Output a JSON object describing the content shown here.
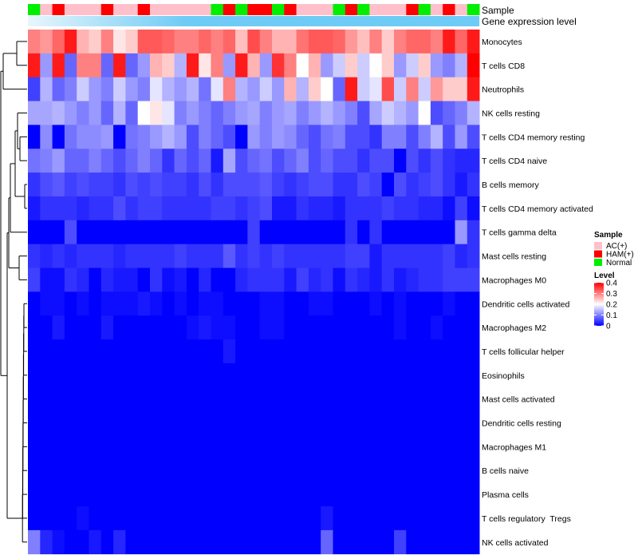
{
  "chart_data": {
    "type": "heatmap",
    "annotation_labels": {
      "sample": "Sample",
      "gene_expression": "Gene expression level"
    },
    "legend": {
      "sample_title": "Sample",
      "sample_entries": [
        {
          "label": "AC(+)",
          "color": "#ffc0cb"
        },
        {
          "label": "HAM(+)",
          "color": "#ff0000"
        },
        {
          "label": "Normal",
          "color": "#00ee00"
        }
      ],
      "level_title": "Level",
      "level_ticks": [
        "0.4",
        "0.3",
        "0.2",
        "0.1",
        "0"
      ],
      "level_range": [
        0,
        0.4
      ],
      "placement": "right"
    },
    "colors": {
      "low": "#0000ff",
      "mid": "#ffffff",
      "high": "#ff0000",
      "gene_expression_bar": "#6ecbf5",
      "gene_expression_bar_light": "#e8f6fc",
      "AC(+)": "#ffc0cb",
      "HAM(+)": "#ff0000",
      "Normal": "#00ee00"
    },
    "samples": [
      "Normal",
      "AC(+)",
      "HAM(+)",
      "AC(+)",
      "AC(+)",
      "AC(+)",
      "HAM(+)",
      "AC(+)",
      "AC(+)",
      "HAM(+)",
      "AC(+)",
      "AC(+)",
      "AC(+)",
      "AC(+)",
      "AC(+)",
      "Normal",
      "HAM(+)",
      "Normal",
      "HAM(+)",
      "HAM(+)",
      "Normal",
      "HAM(+)",
      "AC(+)",
      "AC(+)",
      "AC(+)",
      "Normal",
      "HAM(+)",
      "Normal",
      "AC(+)",
      "AC(+)",
      "AC(+)",
      "HAM(+)",
      "Normal",
      "AC(+)",
      "HAM(+)",
      "AC(+)",
      "Normal"
    ],
    "rows": [
      {
        "name": "Monocytes",
        "values": [
          0.3,
          0.28,
          0.32,
          0.38,
          0.26,
          0.24,
          0.3,
          0.22,
          0.24,
          0.33,
          0.33,
          0.32,
          0.3,
          0.3,
          0.32,
          0.3,
          0.32,
          0.25,
          0.34,
          0.3,
          0.26,
          0.26,
          0.31,
          0.33,
          0.33,
          0.32,
          0.28,
          0.25,
          0.3,
          0.24,
          0.3,
          0.32,
          0.32,
          0.3,
          0.38,
          0.32,
          0.38
        ]
      },
      {
        "name": "T cells CD8",
        "values": [
          0.38,
          0.12,
          0.38,
          0.08,
          0.3,
          0.3,
          0.08,
          0.38,
          0.08,
          0.12,
          0.26,
          0.24,
          0.14,
          0.38,
          0.22,
          0.3,
          0.12,
          0.38,
          0.26,
          0.12,
          0.36,
          0.3,
          0.2,
          0.26,
          0.12,
          0.16,
          0.24,
          0.16,
          0.2,
          0.24,
          0.12,
          0.16,
          0.24,
          0.12,
          0.1,
          0.14,
          0.4
        ]
      },
      {
        "name": "Neutrophils",
        "values": [
          0.05,
          0.14,
          0.08,
          0.1,
          0.16,
          0.12,
          0.1,
          0.16,
          0.12,
          0.1,
          0.18,
          0.14,
          0.12,
          0.14,
          0.09,
          0.18,
          0.3,
          0.14,
          0.12,
          0.16,
          0.12,
          0.26,
          0.14,
          0.24,
          0.2,
          0.08,
          0.38,
          0.16,
          0.18,
          0.34,
          0.16,
          0.3,
          0.16,
          0.28,
          0.24,
          0.24,
          0.38
        ]
      },
      {
        "name": "NK cells resting",
        "values": [
          0.13,
          0.13,
          0.14,
          0.12,
          0.1,
          0.12,
          0.08,
          0.14,
          0.08,
          0.2,
          0.22,
          0.18,
          0.1,
          0.12,
          0.1,
          0.08,
          0.1,
          0.12,
          0.13,
          0.1,
          0.12,
          0.13,
          0.1,
          0.12,
          0.14,
          0.12,
          0.1,
          0.06,
          0.13,
          0.16,
          0.14,
          0.12,
          0.2,
          0.06,
          0.08,
          0.1,
          0.14
        ]
      },
      {
        "name": "T cells CD4 memory resting",
        "values": [
          0.0,
          0.11,
          0.0,
          0.09,
          0.11,
          0.11,
          0.12,
          0.0,
          0.09,
          0.1,
          0.12,
          0.14,
          0.12,
          0.06,
          0.1,
          0.08,
          0.06,
          0.0,
          0.12,
          0.1,
          0.12,
          0.11,
          0.08,
          0.06,
          0.09,
          0.1,
          0.06,
          0.06,
          0.04,
          0.1,
          0.1,
          0.06,
          0.1,
          0.14,
          0.06,
          0.12,
          0.06
        ]
      },
      {
        "name": "T cells CD4 naive",
        "values": [
          0.09,
          0.1,
          0.12,
          0.08,
          0.08,
          0.1,
          0.08,
          0.06,
          0.08,
          0.1,
          0.08,
          0.04,
          0.08,
          0.06,
          0.08,
          0.02,
          0.13,
          0.06,
          0.08,
          0.09,
          0.06,
          0.08,
          0.1,
          0.06,
          0.08,
          0.06,
          0.06,
          0.04,
          0.06,
          0.06,
          0.0,
          0.06,
          0.04,
          0.06,
          0.04,
          0.03,
          0.03
        ]
      },
      {
        "name": "B cells memory",
        "values": [
          0.04,
          0.06,
          0.07,
          0.05,
          0.06,
          0.05,
          0.05,
          0.04,
          0.06,
          0.05,
          0.06,
          0.05,
          0.05,
          0.04,
          0.06,
          0.04,
          0.06,
          0.06,
          0.06,
          0.07,
          0.05,
          0.04,
          0.05,
          0.06,
          0.06,
          0.04,
          0.04,
          0.06,
          0.05,
          0.0,
          0.06,
          0.04,
          0.05,
          0.06,
          0.04,
          0.02,
          0.04
        ]
      },
      {
        "name": "T cells CD4 memory activated",
        "values": [
          0.02,
          0.04,
          0.04,
          0.04,
          0.03,
          0.04,
          0.04,
          0.06,
          0.04,
          0.05,
          0.05,
          0.04,
          0.04,
          0.04,
          0.04,
          0.05,
          0.05,
          0.04,
          0.05,
          0.06,
          0.02,
          0.02,
          0.04,
          0.03,
          0.03,
          0.02,
          0.04,
          0.04,
          0.04,
          0.05,
          0.04,
          0.04,
          0.03,
          0.03,
          0.01,
          0.05,
          0.01
        ]
      },
      {
        "name": "T cells gamma delta",
        "values": [
          0.0,
          0.0,
          0.0,
          0.06,
          0.0,
          0.0,
          0.0,
          0.0,
          0.0,
          0.0,
          0.0,
          0.0,
          0.0,
          0.0,
          0.0,
          0.0,
          0.0,
          0.0,
          0.05,
          0.0,
          0.0,
          0.0,
          0.0,
          0.0,
          0.0,
          0.0,
          0.04,
          0.0,
          0.04,
          0.0,
          0.0,
          0.0,
          0.0,
          0.0,
          0.0,
          0.12,
          0.04
        ]
      },
      {
        "name": "Mast cells resting",
        "values": [
          0.04,
          0.03,
          0.04,
          0.03,
          0.04,
          0.04,
          0.04,
          0.03,
          0.04,
          0.04,
          0.04,
          0.04,
          0.05,
          0.04,
          0.04,
          0.04,
          0.07,
          0.04,
          0.05,
          0.04,
          0.05,
          0.04,
          0.04,
          0.04,
          0.04,
          0.04,
          0.05,
          0.05,
          0.02,
          0.04,
          0.04,
          0.04,
          0.04,
          0.04,
          0.05,
          0.03,
          0.04
        ]
      },
      {
        "name": "Macrophages M0",
        "values": [
          0.05,
          0.01,
          0.01,
          0.04,
          0.03,
          0.0,
          0.03,
          0.02,
          0.02,
          0.0,
          0.04,
          0.01,
          0.02,
          0.0,
          0.03,
          0.0,
          0.0,
          0.03,
          0.04,
          0.04,
          0.04,
          0.02,
          0.05,
          0.03,
          0.04,
          0.01,
          0.04,
          0.03,
          0.02,
          0.04,
          0.02,
          0.03,
          0.04,
          0.04,
          0.05,
          0.05,
          0.05
        ]
      },
      {
        "name": "Dendritic cells activated",
        "values": [
          0.0,
          0.01,
          0.01,
          0.0,
          0.01,
          0.0,
          0.01,
          0.01,
          0.01,
          0.02,
          0.01,
          0.0,
          0.01,
          0.0,
          0.01,
          0.01,
          0.0,
          0.0,
          0.0,
          0.01,
          0.01,
          0.0,
          0.0,
          0.01,
          0.01,
          0.0,
          0.0,
          0.0,
          0.01,
          0.0,
          0.01,
          0.0,
          0.0,
          0.0,
          0.01,
          0.0,
          0.0
        ]
      },
      {
        "name": "Macrophages M2",
        "values": [
          0.0,
          0.0,
          0.02,
          0.0,
          0.0,
          0.0,
          0.02,
          0.0,
          0.0,
          0.0,
          0.0,
          0.0,
          0.0,
          0.01,
          0.02,
          0.01,
          0.01,
          0.0,
          0.0,
          0.01,
          0.01,
          0.0,
          0.0,
          0.0,
          0.0,
          0.0,
          0.0,
          0.0,
          0.0,
          0.0,
          0.01,
          0.0,
          0.0,
          0.01,
          0.0,
          0.0,
          0.0
        ]
      },
      {
        "name": "T cells follicular helper",
        "values": [
          0.0,
          0.0,
          0.0,
          0.0,
          0.0,
          0.0,
          0.0,
          0.0,
          0.0,
          0.0,
          0.0,
          0.0,
          0.0,
          0.0,
          0.0,
          0.0,
          0.02,
          0.0,
          0.0,
          0.0,
          0.0,
          0.0,
          0.0,
          0.0,
          0.0,
          0.0,
          0.0,
          0.0,
          0.0,
          0.0,
          0.0,
          0.0,
          0.0,
          0.0,
          0.0,
          0.0,
          0.0
        ]
      },
      {
        "name": "Eosinophils",
        "values": [
          0.0,
          0.0,
          0.0,
          0.0,
          0.0,
          0.0,
          0.0,
          0.0,
          0.0,
          0.0,
          0.0,
          0.0,
          0.0,
          0.0,
          0.0,
          0.0,
          0.0,
          0.0,
          0.0,
          0.0,
          0.0,
          0.0,
          0.0,
          0.0,
          0.0,
          0.0,
          0.0,
          0.0,
          0.0,
          0.0,
          0.0,
          0.0,
          0.0,
          0.0,
          0.0,
          0.0,
          0.0
        ]
      },
      {
        "name": "Mast cells activated",
        "values": [
          0.0,
          0.0,
          0.0,
          0.0,
          0.0,
          0.0,
          0.0,
          0.0,
          0.0,
          0.0,
          0.0,
          0.0,
          0.0,
          0.0,
          0.0,
          0.0,
          0.0,
          0.0,
          0.0,
          0.0,
          0.0,
          0.0,
          0.0,
          0.0,
          0.0,
          0.0,
          0.0,
          0.0,
          0.0,
          0.0,
          0.0,
          0.0,
          0.0,
          0.0,
          0.0,
          0.0,
          0.0
        ]
      },
      {
        "name": "Dendritic cells resting",
        "values": [
          0.0,
          0.0,
          0.0,
          0.0,
          0.0,
          0.0,
          0.0,
          0.0,
          0.0,
          0.0,
          0.0,
          0.0,
          0.0,
          0.0,
          0.0,
          0.0,
          0.0,
          0.0,
          0.0,
          0.0,
          0.0,
          0.0,
          0.0,
          0.0,
          0.0,
          0.0,
          0.0,
          0.0,
          0.0,
          0.0,
          0.0,
          0.0,
          0.0,
          0.0,
          0.0,
          0.0,
          0.0
        ]
      },
      {
        "name": "Macrophages M1",
        "values": [
          0.0,
          0.0,
          0.0,
          0.0,
          0.0,
          0.0,
          0.0,
          0.0,
          0.0,
          0.0,
          0.0,
          0.0,
          0.0,
          0.0,
          0.0,
          0.0,
          0.0,
          0.0,
          0.0,
          0.0,
          0.0,
          0.0,
          0.0,
          0.0,
          0.0,
          0.0,
          0.0,
          0.0,
          0.0,
          0.0,
          0.0,
          0.0,
          0.0,
          0.0,
          0.0,
          0.0,
          0.0
        ]
      },
      {
        "name": "B cells naive",
        "values": [
          0.0,
          0.0,
          0.0,
          0.0,
          0.0,
          0.0,
          0.0,
          0.0,
          0.0,
          0.0,
          0.0,
          0.0,
          0.0,
          0.0,
          0.0,
          0.0,
          0.0,
          0.0,
          0.0,
          0.0,
          0.0,
          0.0,
          0.0,
          0.0,
          0.0,
          0.0,
          0.0,
          0.0,
          0.0,
          0.0,
          0.0,
          0.0,
          0.0,
          0.0,
          0.0,
          0.0,
          0.0
        ]
      },
      {
        "name": "Plasma cells",
        "values": [
          0.0,
          0.0,
          0.0,
          0.0,
          0.0,
          0.0,
          0.0,
          0.0,
          0.0,
          0.0,
          0.0,
          0.0,
          0.0,
          0.0,
          0.0,
          0.0,
          0.0,
          0.0,
          0.0,
          0.0,
          0.0,
          0.0,
          0.0,
          0.0,
          0.0,
          0.0,
          0.0,
          0.0,
          0.0,
          0.0,
          0.0,
          0.0,
          0.0,
          0.0,
          0.0,
          0.0,
          0.0
        ]
      },
      {
        "name": "T cells regulatory  Tregs",
        "values": [
          0.0,
          0.0,
          0.0,
          0.0,
          0.01,
          0.0,
          0.0,
          0.0,
          0.0,
          0.0,
          0.0,
          0.0,
          0.0,
          0.0,
          0.0,
          0.0,
          0.0,
          0.0,
          0.0,
          0.0,
          0.0,
          0.0,
          0.0,
          0.0,
          0.02,
          0.0,
          0.0,
          0.0,
          0.0,
          0.0,
          0.0,
          0.0,
          0.0,
          0.0,
          0.0,
          0.0,
          0.0
        ]
      },
      {
        "name": "NK cells activated",
        "values": [
          0.1,
          0.03,
          0.01,
          0.0,
          0.0,
          0.02,
          0.0,
          0.03,
          0.0,
          0.0,
          0.0,
          0.0,
          0.0,
          0.0,
          0.0,
          0.0,
          0.0,
          0.0,
          0.0,
          0.0,
          0.0,
          0.0,
          0.0,
          0.0,
          0.08,
          0.0,
          0.0,
          0.0,
          0.0,
          0.0,
          0.05,
          0.0,
          0.0,
          0.0,
          0.0,
          0.0,
          0.0
        ]
      }
    ]
  }
}
